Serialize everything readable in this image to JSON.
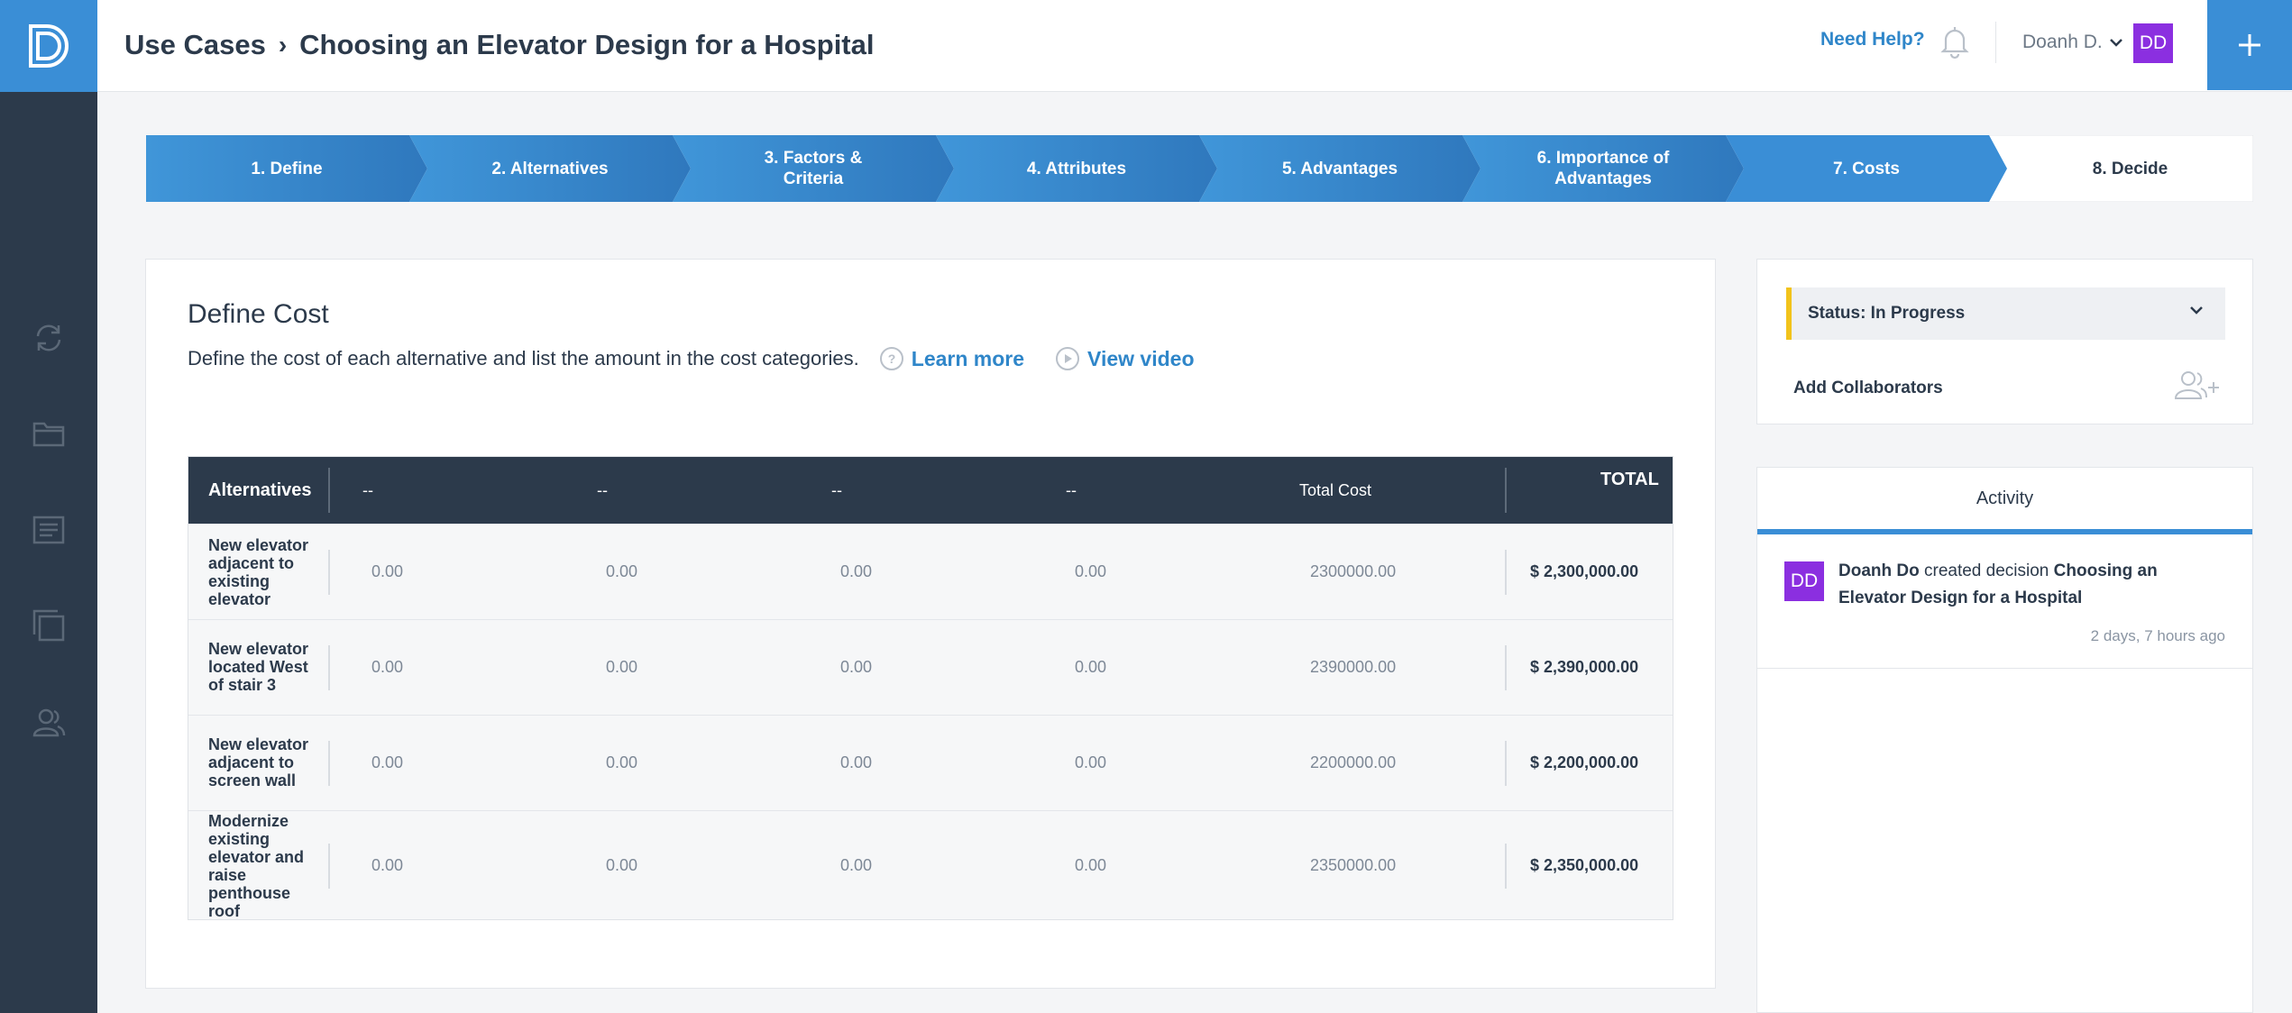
{
  "header": {
    "breadcrumb_root": "Use Cases",
    "breadcrumb_sep": "›",
    "breadcrumb_current": "Choosing an Elevator Design for a Hospital",
    "help_link": "Need Help?",
    "user_name": "Doanh D.",
    "user_initials": "DD"
  },
  "steps": [
    {
      "line1": "1. Define",
      "line2": ""
    },
    {
      "line1": "2. Alternatives",
      "line2": ""
    },
    {
      "line1": "3. Factors &",
      "line2": "Criteria"
    },
    {
      "line1": "4. Attributes",
      "line2": ""
    },
    {
      "line1": "5. Advantages",
      "line2": ""
    },
    {
      "line1": "6. Importance of",
      "line2": "Advantages"
    },
    {
      "line1": "7. Costs",
      "line2": ""
    },
    {
      "line1": "8. Decide",
      "line2": ""
    }
  ],
  "main": {
    "title": "Define Cost",
    "description": "Define the cost of each alternative and list the amount in the cost categories.",
    "learn_more": "Learn more",
    "view_video": "View video"
  },
  "table": {
    "headers": [
      "Alternatives",
      "--",
      "--",
      "--",
      "--",
      "Total Cost",
      "TOTAL"
    ],
    "rows": [
      {
        "alt": "New elevator adjacent to existing elevator",
        "c1": "0.00",
        "c2": "0.00",
        "c3": "0.00",
        "c4": "0.00",
        "total_cost": "2300000.00",
        "total": "$ 2,300,000.00"
      },
      {
        "alt": "New elevator located West of stair 3",
        "c1": "0.00",
        "c2": "0.00",
        "c3": "0.00",
        "c4": "0.00",
        "total_cost": "2390000.00",
        "total": "$ 2,390,000.00"
      },
      {
        "alt": "New elevator adjacent to screen wall",
        "c1": "0.00",
        "c2": "0.00",
        "c3": "0.00",
        "c4": "0.00",
        "total_cost": "2200000.00",
        "total": "$ 2,200,000.00"
      },
      {
        "alt": "Modernize existing elevator and raise penthouse roof",
        "c1": "0.00",
        "c2": "0.00",
        "c3": "0.00",
        "c4": "0.00",
        "total_cost": "2350000.00",
        "total": "$ 2,350,000.00"
      }
    ]
  },
  "side": {
    "status": "Status: In Progress",
    "add_collaborators": "Add Collaborators",
    "activity_tab": "Activity",
    "activity": {
      "initials": "DD",
      "actor": "Doanh Do",
      "action": "created decision",
      "target": "Choosing an Elevator Design for a Hospital",
      "time": "2 days, 7 hours ago"
    }
  },
  "colors": {
    "brand_blue": "#3a8ed6",
    "navy": "#2c3a4b",
    "avatar_purple": "#8b2fe0",
    "status_yellow": "#f2c31b",
    "link_blue": "#2f86c9"
  },
  "icons": [
    "app-logo-icon",
    "refresh-icon",
    "folder-icon",
    "list-icon",
    "copy-icon",
    "users-icon",
    "bell-icon",
    "chevron-down-icon",
    "plus-icon",
    "help-circle-icon",
    "play-circle-icon",
    "add-user-icon"
  ]
}
